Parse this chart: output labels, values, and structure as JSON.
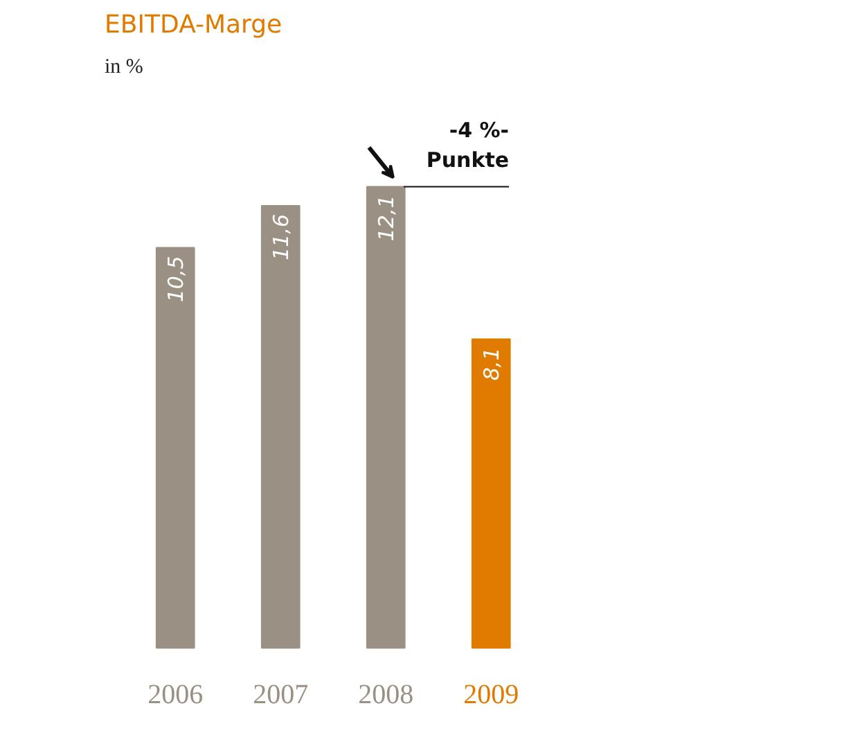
{
  "chart_data": {
    "type": "bar",
    "title": "EBITDA-Marge",
    "subtitle": "in %",
    "categories": [
      "2006",
      "2007",
      "2008",
      "2009"
    ],
    "values": [
      10.5,
      11.6,
      12.1,
      8.1
    ],
    "value_labels": [
      "10,5",
      "11,6",
      "12,1",
      "8,1"
    ],
    "colors": [
      "#9a9083",
      "#9a9083",
      "#9a9083",
      "#e07b00"
    ],
    "annotations": [
      "-4 %-\nPunkte"
    ],
    "grid": false
  }
}
